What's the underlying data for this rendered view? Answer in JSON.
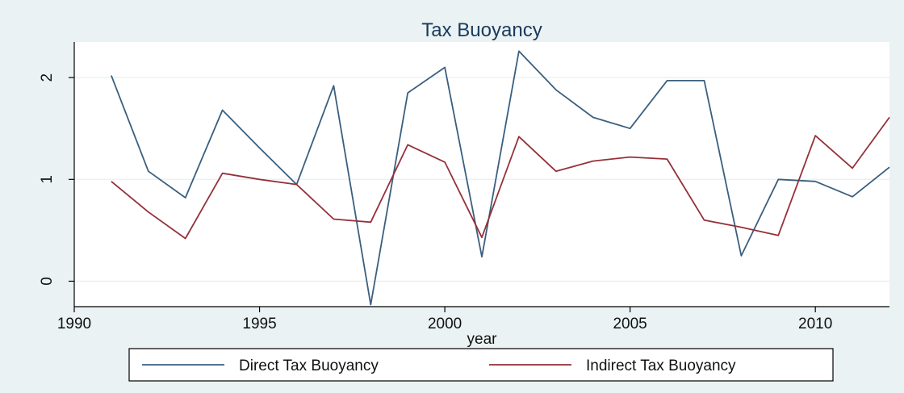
{
  "chart_data": {
    "type": "line",
    "title": "Tax Buoyancy",
    "xlabel": "year",
    "ylabel": "",
    "x": [
      1991,
      1992,
      1993,
      1994,
      1995,
      1996,
      1997,
      1998,
      1999,
      2000,
      2001,
      2002,
      2003,
      2004,
      2005,
      2006,
      2007,
      2008,
      2009,
      2010,
      2011,
      2012
    ],
    "xlim": [
      1990,
      2012
    ],
    "ylim": [
      -0.25,
      2.35
    ],
    "xticks": [
      1990,
      1995,
      2000,
      2005,
      2010
    ],
    "yticks": [
      0,
      1,
      2
    ],
    "grid": "horizontal",
    "legend_position": "bottom",
    "series": [
      {
        "name": "Direct Tax Buoyancy",
        "color": "#3a5f7e",
        "values": [
          2.02,
          1.08,
          0.82,
          1.68,
          1.31,
          0.95,
          1.92,
          -0.23,
          1.85,
          2.1,
          0.24,
          2.26,
          1.88,
          1.61,
          1.5,
          1.97,
          1.97,
          0.25,
          1.0,
          0.98,
          0.83,
          1.12
        ]
      },
      {
        "name": "Indirect Tax Buoyancy",
        "color": "#94313a",
        "values": [
          0.98,
          0.68,
          0.42,
          1.06,
          1.0,
          0.95,
          0.61,
          0.58,
          1.34,
          1.17,
          0.43,
          1.42,
          1.08,
          1.18,
          1.22,
          1.2,
          0.6,
          0.53,
          0.45,
          1.43,
          1.11,
          1.61
        ]
      }
    ]
  },
  "colors": {
    "outer_background": "#eaf2f3",
    "plot_background": "#ffffff",
    "grid": "#eaf2f3",
    "axis": "#000000",
    "title": "#1a3a5c"
  }
}
